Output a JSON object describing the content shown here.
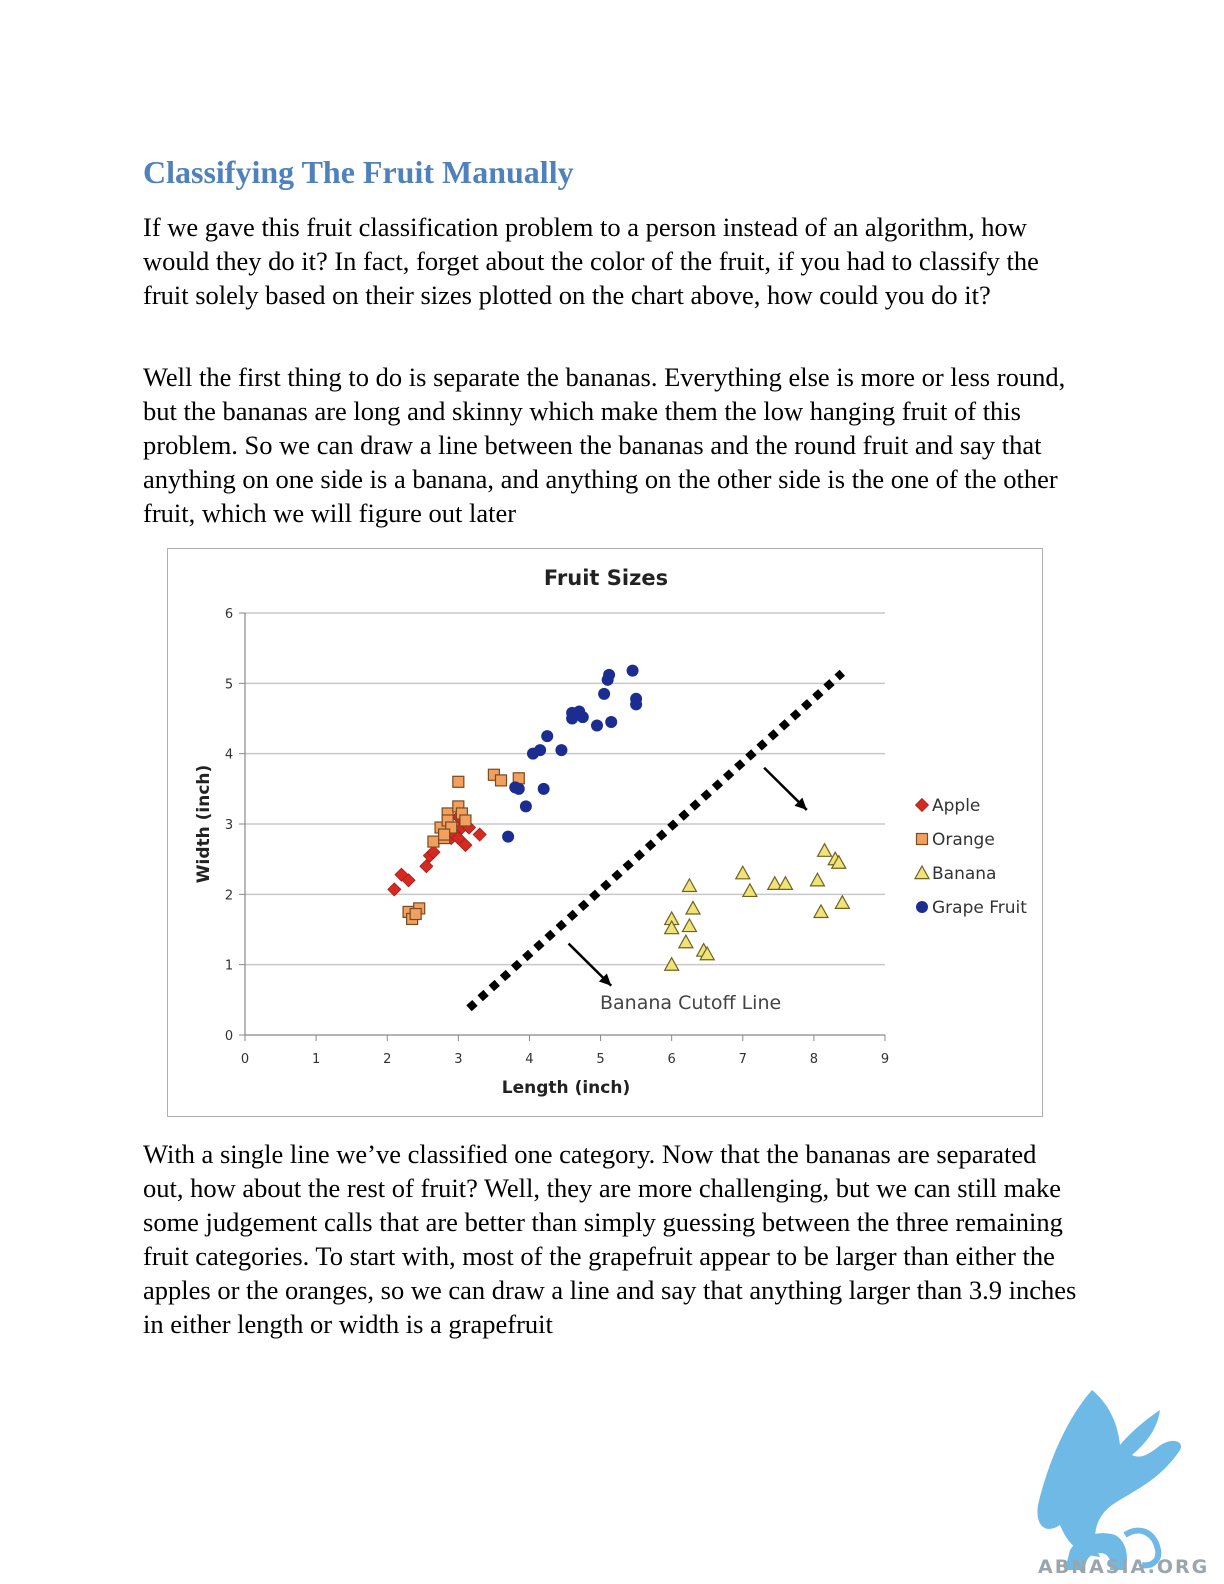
{
  "heading": "Classifying The Fruit Manually",
  "paragraphs": [
    "If we gave this fruit classification problem to a person instead of an algorithm, how would they do it?  In fact, forget about the color of the fruit, if you had to classify the fruit solely based on their sizes plotted on the chart above, how could you do it?",
    "Well the first thing to do is separate the bananas.  Everything else is more or less round, but the bananas are long and skinny which make them the low hanging fruit of this problem.  So we can draw a line between the bananas and the round fruit and say that anything on one side is a banana, and anything on the other side is the one of the other fruit, which we will figure out later",
    "With a single line we’ve classified one category.  Now that the bananas are separated out, how about the rest of fruit?   Well, they are more challenging, but we can still make some judgement calls that are better than simply guessing between the three remaining fruit categories.   To start with, most of the grapefruit appear to be larger than either the apples or the oranges, so we can draw a line and say that anything larger than 3.9 inches in either length or width is a grapefruit"
  ],
  "watermark": "ABNASIA.ORG",
  "chart_data": {
    "type": "scatter",
    "title": "Fruit Sizes",
    "xlabel": "Length (inch)",
    "ylabel": "Width (inch)",
    "xlim": [
      0,
      9
    ],
    "ylim": [
      0,
      6
    ],
    "xticks": [
      "0",
      "1",
      "2",
      "3",
      "4",
      "5",
      "6",
      "7",
      "8",
      "9"
    ],
    "yticks": [
      "0",
      "1",
      "2",
      "3",
      "4",
      "5",
      "6"
    ],
    "grid": "horizontal",
    "legend_position": "right",
    "series": [
      {
        "name": "Apple",
        "marker": "diamond",
        "color": "#d42a22",
        "points": [
          [
            2.1,
            2.07
          ],
          [
            2.2,
            2.28
          ],
          [
            2.3,
            2.2
          ],
          [
            2.55,
            2.4
          ],
          [
            2.6,
            2.55
          ],
          [
            2.65,
            2.6
          ],
          [
            2.8,
            2.95
          ],
          [
            2.9,
            2.8
          ],
          [
            2.95,
            2.85
          ],
          [
            3.0,
            3.1
          ],
          [
            3.05,
            2.95
          ],
          [
            3.1,
            2.7
          ],
          [
            3.15,
            2.95
          ],
          [
            3.3,
            2.85
          ],
          [
            2.85,
            3.0
          ],
          [
            3.0,
            2.8
          ]
        ]
      },
      {
        "name": "Orange",
        "marker": "square",
        "color": "#f1a060",
        "points": [
          [
            2.3,
            1.75
          ],
          [
            2.35,
            1.65
          ],
          [
            2.45,
            1.8
          ],
          [
            2.4,
            1.72
          ],
          [
            2.65,
            2.75
          ],
          [
            2.75,
            2.95
          ],
          [
            2.8,
            2.8
          ],
          [
            2.85,
            3.15
          ],
          [
            2.85,
            3.05
          ],
          [
            2.9,
            2.95
          ],
          [
            3.0,
            3.25
          ],
          [
            3.0,
            3.6
          ],
          [
            3.05,
            3.15
          ],
          [
            3.1,
            3.05
          ],
          [
            3.5,
            3.7
          ],
          [
            3.6,
            3.62
          ],
          [
            3.85,
            3.65
          ],
          [
            2.8,
            2.85
          ]
        ]
      },
      {
        "name": "Banana",
        "marker": "triangle",
        "color": "#f2e27a",
        "points": [
          [
            6.0,
            1.0
          ],
          [
            6.0,
            1.65
          ],
          [
            6.0,
            1.52
          ],
          [
            6.2,
            1.32
          ],
          [
            6.25,
            1.55
          ],
          [
            6.25,
            2.12
          ],
          [
            6.3,
            1.8
          ],
          [
            6.45,
            1.2
          ],
          [
            6.5,
            1.15
          ],
          [
            7.0,
            2.3
          ],
          [
            7.1,
            2.05
          ],
          [
            7.45,
            2.15
          ],
          [
            7.6,
            2.15
          ],
          [
            8.05,
            2.2
          ],
          [
            8.1,
            1.75
          ],
          [
            8.15,
            2.62
          ],
          [
            8.3,
            2.5
          ],
          [
            8.35,
            2.45
          ],
          [
            8.4,
            1.88
          ]
        ]
      },
      {
        "name": "Grape Fruit",
        "marker": "circle",
        "color": "#1c2d92",
        "points": [
          [
            3.7,
            2.82
          ],
          [
            3.8,
            3.52
          ],
          [
            3.85,
            3.5
          ],
          [
            3.95,
            3.25
          ],
          [
            4.05,
            4.0
          ],
          [
            4.15,
            4.05
          ],
          [
            4.2,
            3.5
          ],
          [
            4.25,
            4.25
          ],
          [
            4.45,
            4.05
          ],
          [
            4.6,
            4.5
          ],
          [
            4.6,
            4.58
          ],
          [
            4.7,
            4.6
          ],
          [
            4.75,
            4.52
          ],
          [
            4.95,
            4.4
          ],
          [
            5.05,
            4.85
          ],
          [
            5.1,
            5.05
          ],
          [
            5.12,
            5.12
          ],
          [
            5.15,
            4.45
          ],
          [
            5.45,
            5.18
          ],
          [
            5.5,
            4.7
          ],
          [
            5.5,
            4.78
          ]
        ]
      }
    ],
    "annotation": {
      "label": "Banana Cutoff Line",
      "line": [
        [
          3.15,
          0.38
        ],
        [
          8.4,
          5.15
        ]
      ]
    }
  }
}
